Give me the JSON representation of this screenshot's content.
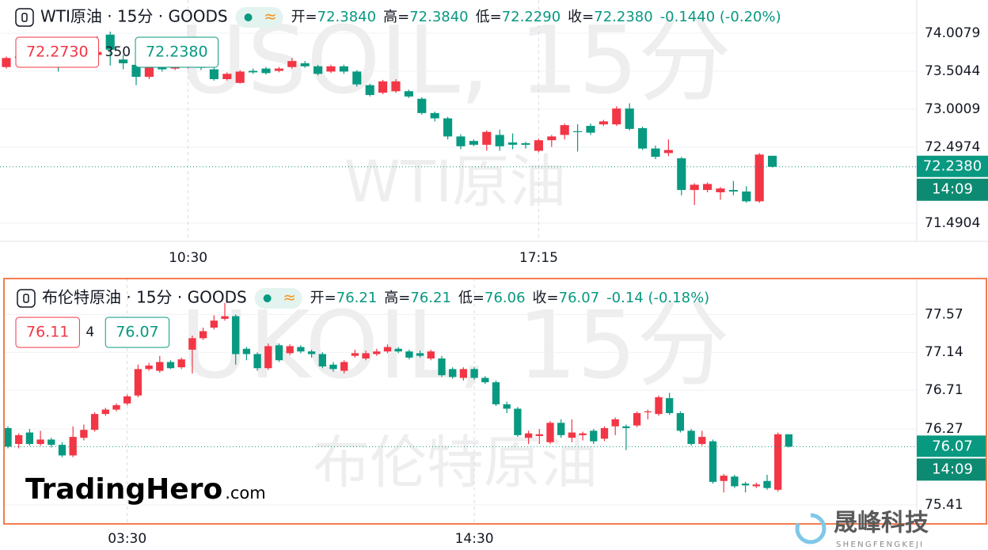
{
  "chart_data": [
    {
      "type": "candlestick",
      "title": "WTI原油 · 15分 · GOODS",
      "status_icon": "≈",
      "info": [
        [
          "开=",
          "72.3840"
        ],
        [
          "高=",
          "72.3840"
        ],
        [
          "低=",
          "72.2290"
        ],
        [
          "收=",
          "72.2380"
        ]
      ],
      "change": "-0.1440 (-0.20%)",
      "quote": {
        "bid": "72.2730",
        "spread": "350",
        "ask": "72.2380"
      },
      "last_price": {
        "value": 72.238,
        "label": "72.2380"
      },
      "countdown": "14:09",
      "watermark": [
        "USOIL, 15分",
        "WTI原油"
      ],
      "up_color": "#f23645",
      "down_color": "#089981",
      "ylim": [
        71.249,
        74.449
      ],
      "yticks": [
        74.0079,
        73.5044,
        73.0009,
        72.4974,
        71.4904
      ],
      "grid": true,
      "categories": [
        null,
        null,
        null,
        null,
        null,
        null,
        null,
        null,
        null,
        null,
        null,
        null,
        null,
        null,
        "10:30",
        null,
        null,
        null,
        null,
        null,
        null,
        null,
        null,
        null,
        null,
        null,
        null,
        null,
        null,
        null,
        null,
        null,
        null,
        null,
        null,
        null,
        null,
        null,
        null,
        null,
        null,
        "17:15",
        null,
        null,
        null,
        null,
        null,
        null,
        null,
        null,
        null,
        null,
        null,
        null,
        null,
        null,
        null,
        null,
        null,
        null
      ],
      "open": [
        73.56,
        73.68,
        73.7,
        73.66,
        73.7,
        73.64,
        73.68,
        73.72,
        73.99,
        73.66,
        73.59,
        73.43,
        73.59,
        73.54,
        73.56,
        73.6,
        73.53,
        73.4,
        73.35,
        73.51,
        73.54,
        73.51,
        73.56,
        73.61,
        73.57,
        73.5,
        73.57,
        73.5,
        73.32,
        73.22,
        73.24,
        73.24,
        73.14,
        72.95,
        72.88,
        72.64,
        72.58,
        72.53,
        72.66,
        72.56,
        72.55,
        72.45,
        72.59,
        72.66,
        72.71,
        72.78,
        72.8,
        72.8,
        73.01,
        72.75,
        72.48,
        72.42,
        72.35,
        71.93,
        71.93,
        71.9,
        71.93,
        71.91,
        71.78,
        72.384
      ],
      "high": [
        73.7,
        73.74,
        73.74,
        73.74,
        73.72,
        73.72,
        73.76,
        73.97,
        74.03,
        73.72,
        73.61,
        73.6,
        73.62,
        73.61,
        73.62,
        73.63,
        73.55,
        73.49,
        73.52,
        73.54,
        73.56,
        73.56,
        73.68,
        73.64,
        73.59,
        73.59,
        73.59,
        73.52,
        73.34,
        73.39,
        73.4,
        73.26,
        73.16,
        72.97,
        72.9,
        72.67,
        72.6,
        72.72,
        72.73,
        72.68,
        72.57,
        72.61,
        72.66,
        72.81,
        72.8,
        72.81,
        72.86,
        73.04,
        73.08,
        72.77,
        72.52,
        72.6,
        72.37,
        72.02,
        72.03,
        71.97,
        72.05,
        71.98,
        72.42,
        72.384
      ],
      "low": [
        73.54,
        73.64,
        73.62,
        73.63,
        73.5,
        73.6,
        73.65,
        73.7,
        73.58,
        73.53,
        73.32,
        73.4,
        73.5,
        73.52,
        73.54,
        73.52,
        73.38,
        73.38,
        73.34,
        73.47,
        73.46,
        73.49,
        73.54,
        73.55,
        73.45,
        73.48,
        73.47,
        73.3,
        73.17,
        73.2,
        73.22,
        73.15,
        72.93,
        72.84,
        72.6,
        72.47,
        72.51,
        72.45,
        72.45,
        72.47,
        72.48,
        72.43,
        72.5,
        72.6,
        72.44,
        72.66,
        72.78,
        72.78,
        72.72,
        72.46,
        72.34,
        72.38,
        71.86,
        71.73,
        71.9,
        71.8,
        71.86,
        71.76,
        71.76,
        72.229
      ],
      "close": [
        73.68,
        73.7,
        73.66,
        73.7,
        73.64,
        73.68,
        73.72,
        73.76,
        73.79,
        73.61,
        73.43,
        73.56,
        73.53,
        73.58,
        73.6,
        73.55,
        73.4,
        73.47,
        73.5,
        73.49,
        73.48,
        73.54,
        73.64,
        73.57,
        73.47,
        73.57,
        73.5,
        73.33,
        73.19,
        73.37,
        73.37,
        73.17,
        72.95,
        72.88,
        72.64,
        72.51,
        72.53,
        72.7,
        72.51,
        72.53,
        72.53,
        72.59,
        72.64,
        72.79,
        72.7,
        72.69,
        72.84,
        73.01,
        72.74,
        72.48,
        72.37,
        72.46,
        71.93,
        72.0,
        72.01,
        71.95,
        71.91,
        71.78,
        72.4,
        72.238
      ]
    },
    {
      "type": "candlestick",
      "title": "布伦特原油 · 15分 · GOODS",
      "status_icon": "≈",
      "info": [
        [
          "开=",
          "76.21"
        ],
        [
          "高=",
          "76.21"
        ],
        [
          "低=",
          "76.06"
        ],
        [
          "收=",
          "76.07"
        ]
      ],
      "change": "-0.14 (-0.18%)",
      "quote": {
        "bid": "76.11",
        "spread": "4",
        "ask": "76.07"
      },
      "last_price": 76.07,
      "countdown": "14:09",
      "watermark": [
        "UKOIL, 15分",
        "布伦特原油"
      ],
      "up_color": "#f23645",
      "down_color": "#089981",
      "ylim": [
        75.193,
        77.977
      ],
      "yticks": [
        77.57,
        77.14,
        76.71,
        76.27,
        75.41
      ],
      "grid": true,
      "categories": [
        null,
        null,
        null,
        null,
        null,
        null,
        null,
        null,
        null,
        null,
        null,
        "03:30",
        null,
        null,
        null,
        null,
        null,
        null,
        null,
        null,
        null,
        null,
        null,
        null,
        null,
        null,
        null,
        null,
        null,
        null,
        null,
        null,
        null,
        null,
        null,
        null,
        null,
        null,
        null,
        null,
        null,
        null,
        null,
        "14:30",
        null,
        null,
        null,
        null,
        null,
        null,
        null,
        null,
        null,
        null,
        null,
        null,
        null,
        null,
        null,
        null,
        null,
        null,
        null,
        null,
        null,
        null,
        null,
        null,
        null,
        null,
        null,
        null,
        null
      ],
      "open": [
        76.28,
        76.1,
        76.23,
        76.1,
        76.15,
        76.09,
        75.97,
        76.17,
        76.26,
        76.44,
        76.49,
        76.56,
        76.65,
        76.95,
        76.93,
        77.03,
        76.97,
        77.17,
        77.3,
        77.42,
        77.52,
        77.55,
        77.18,
        77.12,
        76.96,
        77.22,
        77.13,
        77.2,
        77.15,
        77.12,
        77.0,
        76.93,
        77.1,
        77.07,
        77.12,
        77.15,
        77.18,
        77.15,
        77.13,
        77.07,
        77.07,
        76.95,
        76.85,
        76.95,
        76.85,
        76.8,
        76.55,
        76.5,
        76.17,
        76.19,
        76.12,
        76.34,
        76.17,
        76.2,
        76.25,
        76.16,
        76.3,
        76.3,
        76.31,
        76.46,
        76.44,
        76.62,
        76.45,
        76.25,
        76.1,
        76.13,
        75.68,
        75.73,
        75.65,
        75.62,
        75.68,
        75.58,
        76.21
      ],
      "high": [
        76.3,
        76.22,
        76.27,
        76.25,
        76.17,
        76.12,
        76.3,
        76.32,
        76.46,
        76.51,
        76.56,
        76.66,
        77.0,
        77.02,
        77.1,
        77.05,
        77.08,
        77.33,
        77.42,
        77.56,
        77.7,
        77.57,
        77.2,
        77.14,
        77.24,
        77.24,
        77.23,
        77.22,
        77.17,
        77.14,
        77.03,
        77.05,
        77.17,
        77.16,
        77.18,
        77.23,
        77.2,
        77.17,
        77.16,
        77.17,
        77.1,
        76.97,
        76.97,
        76.97,
        76.87,
        76.82,
        76.58,
        76.52,
        76.25,
        76.27,
        76.36,
        76.38,
        76.38,
        76.24,
        76.27,
        76.3,
        76.4,
        76.32,
        76.47,
        76.49,
        76.65,
        76.68,
        76.47,
        76.27,
        76.25,
        76.15,
        75.76,
        75.75,
        75.67,
        75.66,
        75.75,
        76.23,
        76.21
      ],
      "low": [
        76.05,
        76.05,
        76.08,
        76.08,
        76.06,
        75.95,
        75.95,
        76.14,
        76.24,
        76.42,
        76.47,
        76.54,
        76.63,
        76.93,
        76.91,
        76.95,
        76.95,
        76.9,
        77.28,
        77.4,
        77.5,
        77.0,
        77.05,
        76.93,
        76.94,
        77.03,
        77.11,
        77.13,
        77.08,
        76.96,
        76.92,
        76.9,
        77.08,
        77.05,
        77.1,
        77.13,
        77.13,
        77.06,
        77.08,
        77.05,
        76.86,
        76.84,
        76.82,
        76.83,
        76.78,
        76.53,
        76.45,
        76.18,
        76.1,
        76.1,
        76.1,
        76.17,
        76.12,
        76.14,
        76.1,
        76.13,
        76.2,
        76.03,
        76.29,
        76.38,
        76.42,
        76.43,
        76.23,
        76.08,
        76.08,
        75.65,
        75.55,
        75.6,
        75.55,
        75.6,
        75.58,
        75.56,
        76.06
      ],
      "close": [
        76.07,
        76.2,
        76.1,
        76.15,
        76.09,
        75.97,
        76.18,
        76.26,
        76.44,
        76.49,
        76.54,
        76.64,
        76.95,
        76.99,
        77.03,
        76.96,
        77.06,
        77.3,
        77.38,
        77.5,
        77.55,
        77.12,
        77.12,
        76.96,
        77.21,
        77.05,
        77.21,
        77.15,
        77.12,
        76.98,
        76.95,
        77.03,
        77.13,
        77.13,
        77.15,
        77.2,
        77.15,
        77.08,
        77.1,
        77.15,
        76.88,
        76.86,
        76.95,
        76.85,
        76.8,
        76.55,
        76.5,
        76.2,
        76.22,
        76.21,
        76.34,
        76.2,
        76.23,
        76.22,
        76.13,
        76.28,
        76.38,
        76.28,
        76.45,
        76.47,
        76.63,
        76.45,
        76.25,
        76.1,
        76.18,
        75.67,
        75.74,
        75.62,
        75.63,
        75.64,
        75.6,
        76.21,
        76.07
      ]
    }
  ],
  "branding": {
    "logo": "TradingHero",
    "logo_suffix": ".com",
    "company": "晟峰科技",
    "company_en": "SHENGFENGKEJI"
  }
}
